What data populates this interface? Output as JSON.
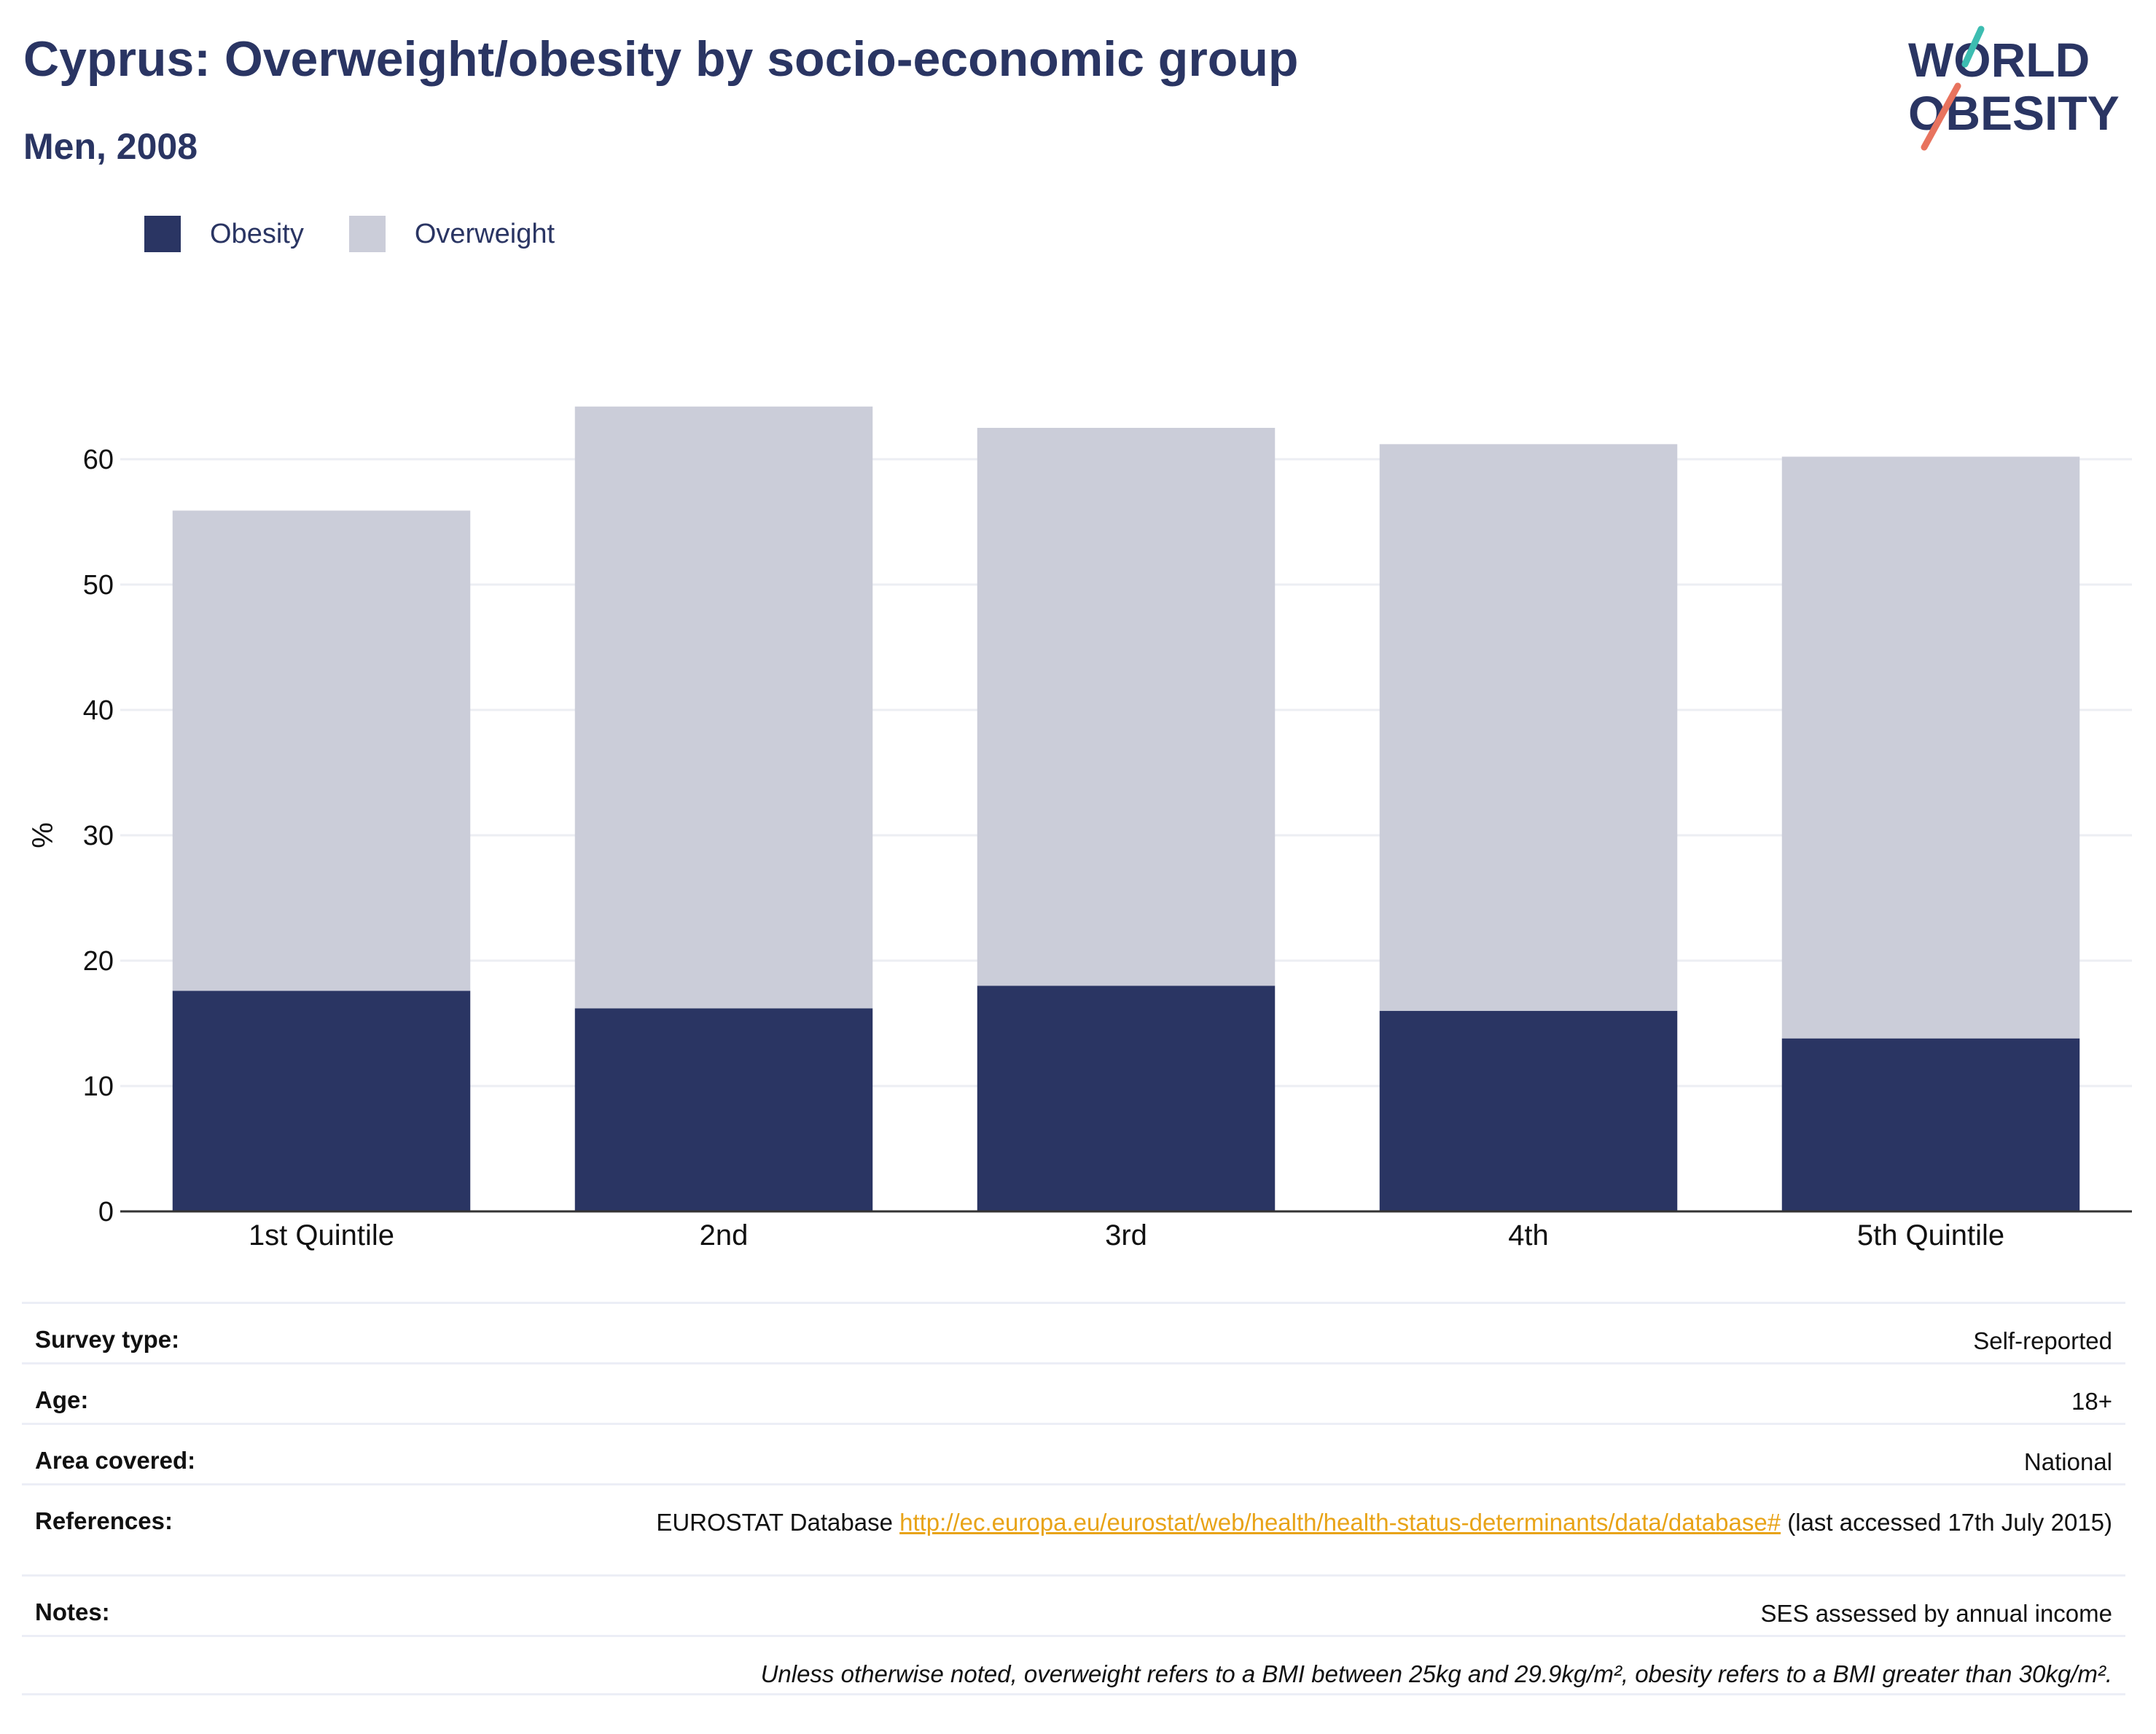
{
  "header": {
    "title": "Cyprus: Overweight/obesity by socio-economic group",
    "subtitle": "Men, 2008"
  },
  "logo": {
    "line1": "WORLD",
    "line2": "OBESITY"
  },
  "colors": {
    "obesity": "#2a3563",
    "overweight": "#cbcdd9",
    "accent_teal": "#3dbdb1",
    "accent_coral": "#e8735e",
    "link": "#e8a317"
  },
  "legend": [
    {
      "label": "Obesity",
      "color": "#2a3563"
    },
    {
      "label": "Overweight",
      "color": "#cbcdd9"
    }
  ],
  "chart_data": {
    "type": "bar",
    "stacked": true,
    "categories": [
      "1st Quintile",
      "2nd",
      "3rd",
      "4th",
      "5th Quintile"
    ],
    "series": [
      {
        "name": "Obesity",
        "values": [
          17.6,
          16.2,
          18.0,
          16.0,
          13.8
        ]
      },
      {
        "name": "Overweight",
        "values": [
          38.3,
          48.0,
          44.5,
          45.2,
          46.4
        ]
      }
    ],
    "ylabel": "%",
    "ylim": [
      0,
      65
    ],
    "yticks": [
      0,
      10,
      20,
      30,
      40,
      50,
      60
    ],
    "grid": true,
    "legend_position": "top-left"
  },
  "meta": {
    "survey_type": {
      "label": "Survey type:",
      "value": "Self-reported"
    },
    "age": {
      "label": "Age:",
      "value": "18+"
    },
    "area": {
      "label": "Area covered:",
      "value": "National"
    },
    "references": {
      "label": "References:",
      "prefix": "EUROSTAT Database ",
      "link": "http://ec.europa.eu/eurostat/web/health/health-status-determinants/data/database#",
      "suffix": " (last accessed 17th July 2015)"
    },
    "notes": {
      "label": "Notes:",
      "value": "SES assessed by annual income"
    },
    "footnote": "Unless otherwise noted, overweight refers to a BMI between 25kg and 29.9kg/m², obesity refers to a BMI greater than 30kg/m²."
  }
}
